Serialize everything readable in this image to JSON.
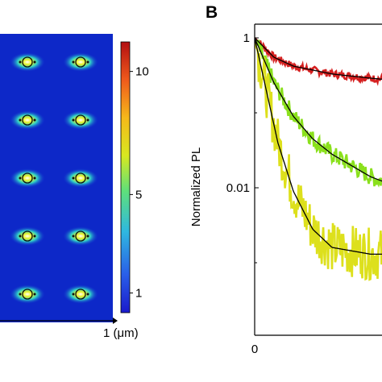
{
  "panel_b_letter": "B",
  "colorbar": {
    "ticks": [
      {
        "value": 10,
        "label": "10"
      },
      {
        "value": 5,
        "label": "5"
      },
      {
        "value": 1,
        "label": "1"
      }
    ],
    "colors": [
      "#1a1acc",
      "#2a5ee8",
      "#2fb8e0",
      "#5fe07a",
      "#d8e820",
      "#f6b81a",
      "#ef5a1c",
      "#b30f12"
    ]
  },
  "map": {
    "x_axis_label": "1 (μm)",
    "background_color": "#0d28c8",
    "emitter_rows": 5,
    "emitter_cols": 2
  },
  "chart_data": {
    "type": "line",
    "y_scale": "log",
    "ylabel": "Normalized PL",
    "y_tick_labels": [
      "1",
      "0.01"
    ],
    "x_tick_labels": [
      "0"
    ],
    "xlim": [
      0,
      1
    ],
    "ylim": [
      0.0003,
      1.2
    ],
    "series": [
      {
        "color": "#d52020",
        "fit_color": "#000000",
        "x": [
          0,
          0.05,
          0.1,
          0.2,
          0.3,
          0.4,
          0.5,
          0.6,
          0.7,
          0.8,
          0.9,
          1.0
        ],
        "y": [
          1,
          0.55,
          0.42,
          0.33,
          0.29,
          0.26,
          0.24,
          0.22,
          0.21,
          0.2,
          0.19,
          0.18
        ]
      },
      {
        "color": "#8ae01c",
        "fit_color": "#000000",
        "x": [
          0,
          0.05,
          0.1,
          0.15,
          0.2,
          0.3,
          0.4,
          0.5,
          0.6,
          0.7,
          0.8,
          0.9,
          1.0
        ],
        "y": [
          1,
          0.25,
          0.09,
          0.045,
          0.028,
          0.014,
          0.009,
          0.0065,
          0.0052,
          0.0046,
          0.0043,
          0.0042,
          0.0041
        ]
      },
      {
        "color": "#dde01c",
        "fit_color": "#000000",
        "x": [
          0,
          0.03,
          0.06,
          0.1,
          0.15,
          0.2,
          0.3,
          0.4,
          0.5,
          0.6,
          0.7,
          0.8,
          0.9,
          1.0
        ],
        "y": [
          1,
          0.2,
          0.04,
          0.009,
          0.0028,
          0.0016,
          0.0013,
          0.0013,
          0.0013,
          0.0013,
          0.0013,
          0.0013,
          0.0013,
          0.0013
        ]
      }
    ]
  }
}
